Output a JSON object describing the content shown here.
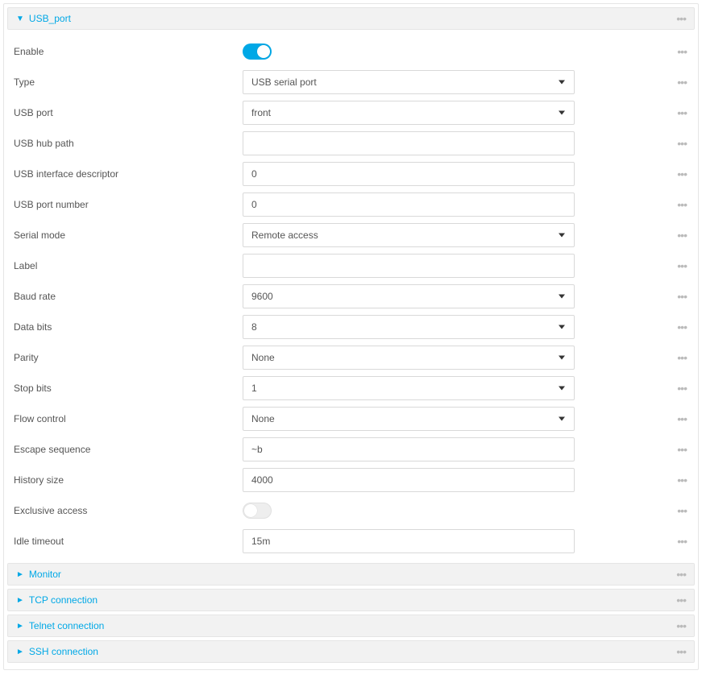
{
  "section": {
    "title": "USB_port",
    "expanded_arrow": "▼",
    "collapsed_arrow": "►"
  },
  "fields": {
    "enable": {
      "label": "Enable",
      "value": true
    },
    "type": {
      "label": "Type",
      "value": "USB serial port"
    },
    "usb_port": {
      "label": "USB port",
      "value": "front"
    },
    "usb_hub_path": {
      "label": "USB hub path",
      "value": ""
    },
    "usb_interface_descriptor": {
      "label": "USB interface descriptor",
      "value": "0"
    },
    "usb_port_number": {
      "label": "USB port number",
      "value": "0"
    },
    "serial_mode": {
      "label": "Serial mode",
      "value": "Remote access"
    },
    "label_field": {
      "label": "Label",
      "value": ""
    },
    "baud_rate": {
      "label": "Baud rate",
      "value": "9600"
    },
    "data_bits": {
      "label": "Data bits",
      "value": "8"
    },
    "parity": {
      "label": "Parity",
      "value": "None"
    },
    "stop_bits": {
      "label": "Stop bits",
      "value": "1"
    },
    "flow_control": {
      "label": "Flow control",
      "value": "None"
    },
    "escape_sequence": {
      "label": "Escape sequence",
      "value": "~b"
    },
    "history_size": {
      "label": "History size",
      "value": "4000"
    },
    "exclusive_access": {
      "label": "Exclusive access",
      "value": false
    },
    "idle_timeout": {
      "label": "Idle timeout",
      "value": "15m"
    }
  },
  "subsections": {
    "monitor": "Monitor",
    "tcp": "TCP connection",
    "telnet": "Telnet connection",
    "ssh": "SSH connection"
  },
  "dots": "•••"
}
